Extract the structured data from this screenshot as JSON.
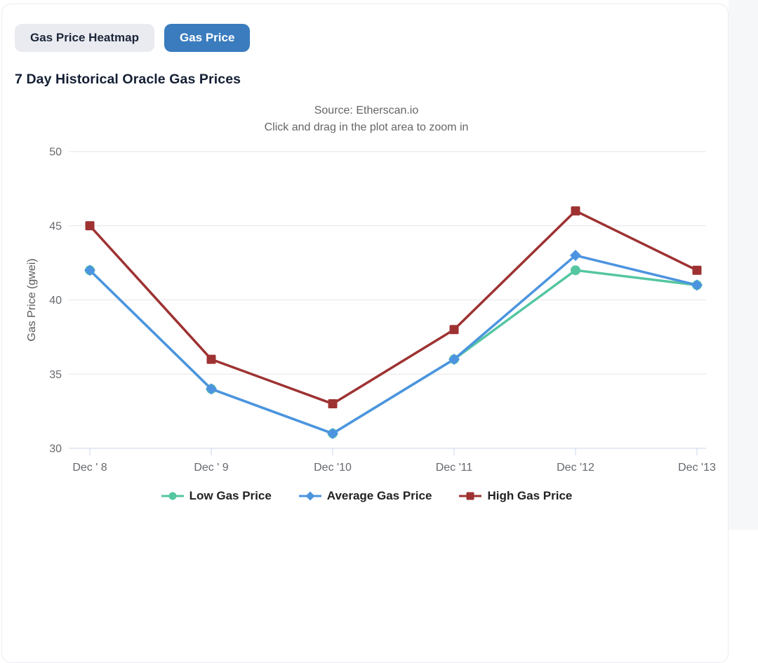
{
  "tabs": [
    {
      "label": "Gas Price Heatmap",
      "active": false
    },
    {
      "label": "Gas Price",
      "active": true
    }
  ],
  "heading": "7 Day Historical Oracle Gas Prices",
  "chart_data": {
    "type": "line",
    "title": "Source: Etherscan.io",
    "subtitle": "Click and drag in the plot area to zoom in",
    "ylabel": "Gas Price (gwei)",
    "xlabel": "",
    "ylim": [
      30,
      50
    ],
    "yticks": [
      30,
      35,
      40,
      45,
      50
    ],
    "grid": true,
    "legend_position": "bottom",
    "categories": [
      "Dec ' 8",
      "Dec ' 9",
      "Dec '10",
      "Dec '11",
      "Dec '12",
      "Dec '13"
    ],
    "series": [
      {
        "name": "Low Gas Price",
        "marker": "circle",
        "color": "#54c6a2",
        "values": [
          42,
          34,
          31,
          36,
          42,
          41
        ]
      },
      {
        "name": "Average Gas Price",
        "marker": "diamond",
        "color": "#4c94e0",
        "values": [
          42,
          34,
          31,
          36,
          43,
          41
        ]
      },
      {
        "name": "High Gas Price",
        "marker": "square",
        "color": "#9e3232",
        "values": [
          45,
          36,
          33,
          38,
          46,
          42
        ]
      }
    ]
  },
  "colors": {
    "active_tab_bg": "#3a7cbe",
    "active_tab_text": "#ffffff",
    "inactive_tab_bg": "#e9ebf1",
    "inactive_tab_text": "#1c2638",
    "heading_text": "#141f35",
    "page_bg": "#f6f7f9",
    "card_border": "#e9ecf2",
    "grid_line": "#e6e6e6",
    "axis_line": "#ccd6eb",
    "tick_label": "#66696e",
    "axis_title": "#595959",
    "chart_title_text": "#666666",
    "legend_text": "#222222"
  }
}
